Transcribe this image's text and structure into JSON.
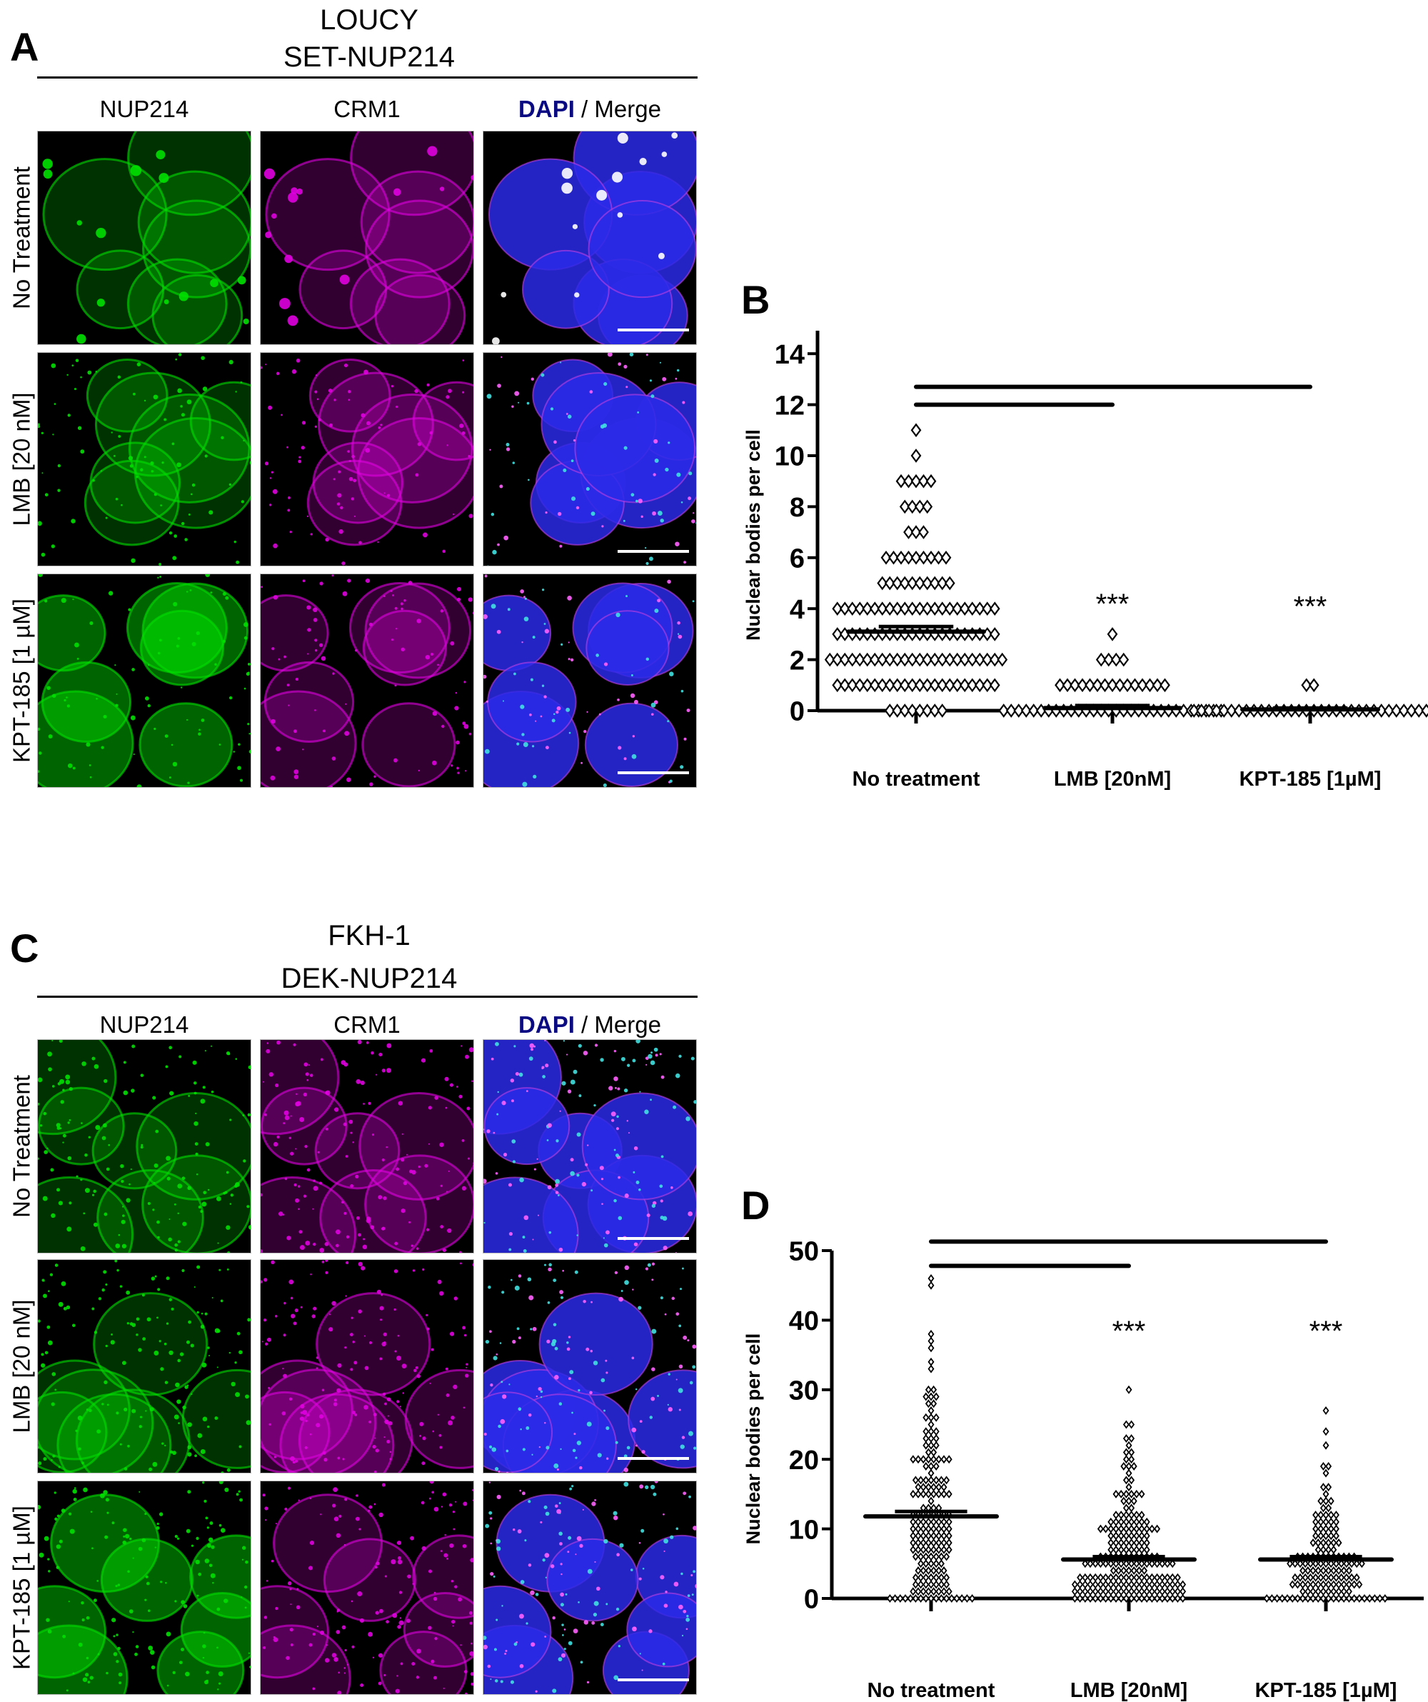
{
  "panels": {
    "A": {
      "letter": "A",
      "cell_line": "LOUCY",
      "fusion": "SET-NUP214",
      "columns": [
        {
          "label": "NUP214"
        },
        {
          "label": "CRM1"
        },
        {
          "label_dapi": "DAPI",
          "label_rest": " / Merge"
        }
      ],
      "rows": [
        {
          "label": "No Treatment"
        },
        {
          "label": "LMB [20 nM]"
        },
        {
          "label": "KPT-185 [1 µM]"
        }
      ]
    },
    "C": {
      "letter": "C",
      "cell_line": "FKH-1",
      "fusion": "DEK-NUP214",
      "columns": [
        {
          "label": "NUP214"
        },
        {
          "label": "CRM1"
        },
        {
          "label_dapi": "DAPI",
          "label_rest": " / Merge"
        }
      ],
      "rows": [
        {
          "label": "No Treatment"
        },
        {
          "label": "LMB [20 nM]"
        },
        {
          "label": "KPT-185 [1 µM]"
        }
      ]
    }
  },
  "colors": {
    "nup214_channel": "#00e000",
    "crm1_channel": "#e000e0",
    "dapi_channel": "#2a2ae8",
    "dapi_label": "#0a0a82"
  },
  "chart_data": [
    {
      "panel": "B",
      "type": "scatter",
      "subtype": "dot-plot with mean ± SEM",
      "title": "",
      "xlabel": "",
      "ylabel": "Nuclear bodies per cell",
      "categories": [
        "No treatment",
        "LMB [20nM]",
        "KPT-185 [1µM]"
      ],
      "ylim": [
        0,
        15
      ],
      "yticks": [
        0,
        2,
        4,
        6,
        8,
        10,
        12,
        14
      ],
      "grid": false,
      "marker": "open diamond",
      "series": [
        {
          "name": "No treatment",
          "mean": 3.1,
          "sem_upper": 3.3,
          "distribution": {
            "0": 8,
            "1": 22,
            "2": 24,
            "3": 22,
            "4": 22,
            "5": 10,
            "6": 9,
            "7": 3,
            "8": 4,
            "9": 5,
            "10": 1,
            "11": 1
          }
        },
        {
          "name": "LMB [20nM]",
          "mean": 0.1,
          "sem_upper": 0.2,
          "distribution": {
            "0": 30,
            "1": 15,
            "2": 4,
            "3": 1
          }
        },
        {
          "name": "KPT-185 [1µM]",
          "mean": 0.05,
          "sem_upper": 0.1,
          "distribution": {
            "0": 32,
            "1": 2
          }
        }
      ],
      "significance": [
        {
          "from": "No treatment",
          "to": "LMB [20nM]",
          "y": 12.0,
          "label": "***"
        },
        {
          "from": "No treatment",
          "to": "KPT-185 [1µM]",
          "y": 12.7,
          "label": "***"
        }
      ],
      "annotations": [
        {
          "category": "LMB [20nM]",
          "text": "***",
          "y": 4.2
        },
        {
          "category": "KPT-185 [1µM]",
          "text": "***",
          "y": 4.1
        }
      ]
    },
    {
      "panel": "D",
      "type": "scatter",
      "subtype": "dot-plot with mean ± SEM",
      "title": "",
      "xlabel": "",
      "ylabel": "Nuclear bodies per cell",
      "categories": [
        "No treatment",
        "LMB [20nM]",
        "KPT-185 [1µM]"
      ],
      "ylim": [
        0,
        50
      ],
      "yticks": [
        0,
        10,
        20,
        30,
        40,
        50
      ],
      "grid": false,
      "marker": "small open diamond",
      "series": [
        {
          "name": "No treatment",
          "mean": 11.8,
          "sem_upper": 12.5,
          "distribution": {
            "0": 17,
            "1": 8,
            "2": 7,
            "3": 7,
            "4": 6,
            "5": 5,
            "6": 7,
            "7": 8,
            "8": 8,
            "9": 8,
            "10": 8,
            "11": 8,
            "12": 8,
            "13": 4,
            "14": 1,
            "15": 8,
            "16": 6,
            "17": 7,
            "18": 1,
            "19": 3,
            "20": 8,
            "21": 2,
            "22": 3,
            "23": 3,
            "24": 3,
            "25": 1,
            "26": 3,
            "27": 1,
            "28": 2,
            "29": 3,
            "30": 2,
            "33": 1,
            "34": 1,
            "36": 1,
            "37": 1,
            "38": 1,
            "45": 1,
            "46": 1
          }
        },
        {
          "name": "LMB [20nM]",
          "mean": 5.6,
          "sem_upper": 6.0,
          "distribution": {
            "0": 22,
            "1": 22,
            "2": 22,
            "3": 20,
            "4": 7,
            "5": 18,
            "6": 12,
            "7": 8,
            "8": 8,
            "9": 8,
            "10": 12,
            "11": 8,
            "12": 6,
            "13": 2,
            "14": 3,
            "15": 6,
            "16": 1,
            "17": 2,
            "18": 1,
            "19": 3,
            "20": 2,
            "21": 2,
            "22": 1,
            "23": 2,
            "25": 2,
            "30": 1
          }
        },
        {
          "name": "KPT-185 [1µM]",
          "mean": 5.6,
          "sem_upper": 6.0,
          "distribution": {
            "0": 24,
            "1": 10,
            "2": 14,
            "3": 13,
            "4": 10,
            "5": 15,
            "6": 12,
            "7": 4,
            "8": 6,
            "9": 5,
            "10": 5,
            "11": 5,
            "12": 5,
            "13": 2,
            "14": 3,
            "15": 1,
            "16": 2,
            "18": 1,
            "19": 2,
            "22": 1,
            "24": 1,
            "27": 1
          }
        }
      ],
      "significance": [
        {
          "from": "No treatment",
          "to": "LMB [20nM]",
          "y": 47.8,
          "label": "***"
        },
        {
          "from": "No treatment",
          "to": "KPT-185 [1µM]",
          "y": 51.3,
          "label": "***"
        }
      ],
      "annotations": [
        {
          "category": "LMB [20nM]",
          "text": "***",
          "y": 38.5
        },
        {
          "category": "KPT-185 [1µM]",
          "text": "***",
          "y": 38.5
        }
      ]
    }
  ],
  "charts": {
    "B": {
      "letter": "B",
      "ylabel": "Nuclear bodies per cell",
      "stars": "***"
    },
    "D": {
      "letter": "D",
      "ylabel": "Nuclear bodies per cell",
      "stars": "***"
    }
  }
}
